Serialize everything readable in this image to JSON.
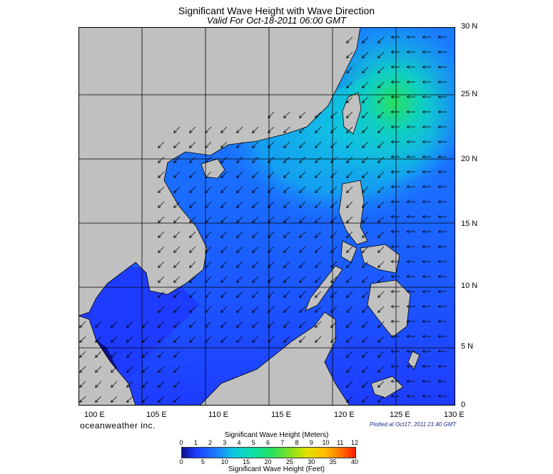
{
  "header": {
    "title": "Significant Wave Height with Wave Direction",
    "subtitle": "Valid For Oct-18-2011 06:00 GMT"
  },
  "map": {
    "lat_labels": [
      "30 N",
      "25 N",
      "20 N",
      "15 N",
      "10 N",
      "5 N",
      "0"
    ],
    "lon_labels": [
      "100 E",
      "105 E",
      "110 E",
      "115 E",
      "120 E",
      "125 E",
      "130 E"
    ],
    "land_color": "#c0c0c0",
    "sea_colors": {
      "calm_dark": "#0a0f8c",
      "low": "#1e3cff",
      "mid": "#1a7cff",
      "high": "#10c8e0",
      "peak": "#28e060"
    },
    "arrow_color": "#000000"
  },
  "footer": {
    "brand": "oceanweather inc.",
    "plotted": "Plotted at Oct17, 2011 21:40 GMT"
  },
  "colorbar": {
    "top_title": "Significant Wave Height (Meters)",
    "bottom_title": "Significant Wave Height (Feet)",
    "meters_ticks": [
      "0",
      "1",
      "2",
      "3",
      "4",
      "5",
      "6",
      "7",
      "8",
      "9",
      "10",
      "11",
      "12"
    ],
    "feet_ticks": [
      "0",
      "5",
      "10",
      "15",
      "20",
      "25",
      "30",
      "35",
      "40"
    ]
  }
}
